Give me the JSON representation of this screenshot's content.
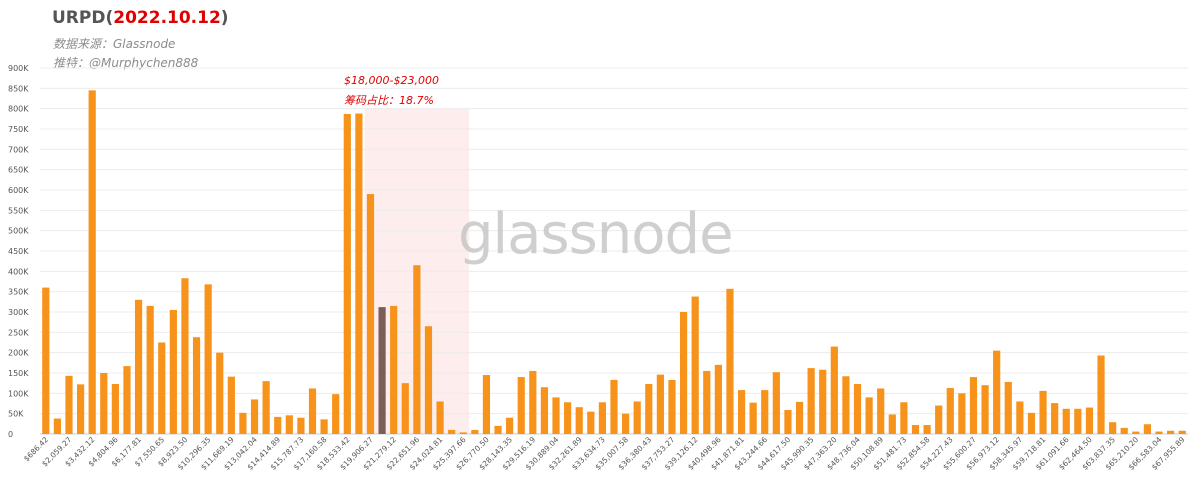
{
  "title": {
    "prefix": "URPD(",
    "date": "2022.10.12",
    "suffix": ")"
  },
  "subtitle_source": "数据来源：Glassnode",
  "subtitle_twitter": "推特：@Murphychen888",
  "watermark": "glassnode",
  "annotation": {
    "range": "$18,000-$23,000",
    "share": "筹码占比：18.7%"
  },
  "colors": {
    "bar": "#f7931a",
    "highlight_bar": "#7a5e57",
    "highlight_band": "#fde8e8",
    "annotation": "#e00000"
  },
  "chart_data": {
    "type": "bar",
    "title": "URPD(2022.10.12)",
    "ylim": [
      0,
      900000
    ],
    "yticks": [
      "0",
      "50K",
      "100K",
      "150K",
      "200K",
      "250K",
      "300K",
      "350K",
      "400K",
      "450K",
      "500K",
      "550K",
      "600K",
      "650K",
      "700K",
      "750K",
      "800K",
      "850K",
      "900K"
    ],
    "xtick_labels": [
      "$686.42",
      "$2,059.27",
      "$3,432.12",
      "$4,804.96",
      "$6,177.81",
      "$7,550.65",
      "$8,923.50",
      "$10,296.35",
      "$11,669.19",
      "$13,042.04",
      "$14,414.89",
      "$15,787.73",
      "$17,160.58",
      "$18,533.42",
      "$19,906.27",
      "$21,279.12",
      "$22,651.96",
      "$24,024.81",
      "$25,397.66",
      "$26,770.50",
      "$28,143.35",
      "$29,516.19",
      "$30,889.04",
      "$32,261.89",
      "$33,634.73",
      "$35,007.58",
      "$36,380.43",
      "$37,753.27",
      "$39,126.12",
      "$40,498.96",
      "$41,871.81",
      "$43,244.66",
      "$44,617.50",
      "$45,990.35",
      "$47,363.20",
      "$48,736.04",
      "$50,108.89",
      "$51,481.73",
      "$52,854.58",
      "$54,227.43",
      "$55,600.27",
      "$56,973.12",
      "$58,345.97",
      "$59,718.81",
      "$61,091.66",
      "$62,464.50",
      "$63,837.35",
      "$65,210.20",
      "$66,583.04",
      "$67,955.89"
    ],
    "highlight_range_bars": [
      28,
      36
    ],
    "highlight_bar_index": 29,
    "values": [
      360000,
      38000,
      143000,
      122000,
      845000,
      150000,
      123000,
      167000,
      330000,
      315000,
      225000,
      305000,
      383000,
      238000,
      368000,
      200000,
      141000,
      52000,
      85000,
      130000,
      42000,
      46000,
      40000,
      112000,
      36000,
      98000,
      787000,
      788000,
      590000,
      312000,
      315000,
      125000,
      415000,
      265000,
      80000,
      10000,
      4000,
      10000,
      145000,
      20000,
      40000,
      140000,
      155000,
      115000,
      90000,
      78000,
      66000,
      55000,
      78000,
      133000,
      50000,
      80000,
      123000,
      146000,
      133000,
      300000,
      338000,
      155000,
      170000,
      357000,
      108000,
      77000,
      108000,
      152000,
      59000,
      79000,
      162000,
      158000,
      215000,
      142000,
      123000,
      90000,
      112000,
      48000,
      78000,
      22000,
      22000,
      70000,
      113000,
      100000,
      140000,
      120000,
      205000,
      128000,
      80000,
      52000,
      106000,
      76000,
      62000,
      62000,
      65000,
      193000,
      29000,
      15000,
      6000,
      24000,
      6000,
      8000,
      8000
    ]
  }
}
